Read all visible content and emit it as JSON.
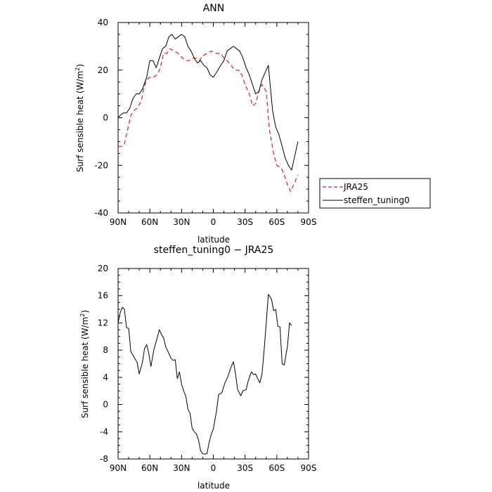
{
  "chart_data": [
    {
      "type": "line",
      "title": "ANN",
      "xlabel": "latitude",
      "ylabel": "Surf sensible heat (W/m²)",
      "ylabel_main": "Surf sensible heat (W/m",
      "ylabel_sup": "2",
      "ylabel_close": ")",
      "xlim": [
        90,
        -90
      ],
      "ylim": [
        -40,
        40
      ],
      "xticks": [
        90,
        60,
        30,
        0,
        -30,
        -60,
        -90
      ],
      "xtick_labels": [
        "90N",
        "60N",
        "30N",
        "0",
        "30S",
        "60S",
        "90S"
      ],
      "yticks": [
        -40,
        -20,
        0,
        20,
        40
      ],
      "ytick_labels": [
        "-40",
        "-20",
        "0",
        "20",
        "40"
      ],
      "legend_position": "right-outside",
      "series": [
        {
          "name": "JRA25",
          "color": "#e31a1c",
          "style": "dashed",
          "points": [
            [
              90,
              -12
            ],
            [
              86,
              -12
            ],
            [
              84,
              -11
            ],
            [
              81,
              -5
            ],
            [
              78,
              1
            ],
            [
              75,
              3
            ],
            [
              72,
              4
            ],
            [
              68,
              7
            ],
            [
              66,
              12
            ],
            [
              63,
              16
            ],
            [
              60,
              17
            ],
            [
              57,
              17
            ],
            [
              53,
              18
            ],
            [
              50,
              21
            ],
            [
              47,
              27
            ],
            [
              44,
              27
            ],
            [
              41,
              29
            ],
            [
              37,
              28
            ],
            [
              33,
              27
            ],
            [
              29,
              25
            ],
            [
              26,
              24
            ],
            [
              23,
              24
            ],
            [
              20,
              25
            ],
            [
              16,
              25
            ],
            [
              13,
              24
            ],
            [
              10,
              26
            ],
            [
              6,
              27
            ],
            [
              2,
              28
            ],
            [
              0,
              27.5
            ],
            [
              -3,
              27
            ],
            [
              -7,
              27
            ],
            [
              -10,
              25
            ],
            [
              -13,
              24
            ],
            [
              -17,
              22
            ],
            [
              -20,
              20
            ],
            [
              -24,
              20
            ],
            [
              -27,
              18
            ],
            [
              -30,
              14
            ],
            [
              -34,
              10
            ],
            [
              -37,
              5
            ],
            [
              -40,
              6
            ],
            [
              -43,
              11
            ],
            [
              -46,
              14
            ],
            [
              -50,
              11
            ],
            [
              -53,
              -5
            ],
            [
              -57,
              -15
            ],
            [
              -60,
              -20
            ],
            [
              -64,
              -21
            ],
            [
              -67,
              -24
            ],
            [
              -70,
              -28
            ],
            [
              -73,
              -31
            ],
            [
              -76,
              -28
            ],
            [
              -80,
              -24
            ]
          ]
        },
        {
          "name": "steffen_tuning0",
          "color": "#000000",
          "style": "solid",
          "points": [
            [
              90,
              0
            ],
            [
              88,
              1
            ],
            [
              85,
              2
            ],
            [
              82,
              2
            ],
            [
              79,
              4
            ],
            [
              76,
              8
            ],
            [
              73,
              10
            ],
            [
              70,
              10
            ],
            [
              67,
              12
            ],
            [
              63,
              17
            ],
            [
              60,
              24
            ],
            [
              57,
              24
            ],
            [
              54,
              21
            ],
            [
              51,
              25
            ],
            [
              48,
              29
            ],
            [
              45,
              30
            ],
            [
              42,
              34
            ],
            [
              39,
              35
            ],
            [
              36,
              33
            ],
            [
              33,
              34
            ],
            [
              30,
              35
            ],
            [
              27,
              34
            ],
            [
              24,
              30
            ],
            [
              21,
              28
            ],
            [
              18,
              25
            ],
            [
              15,
              23
            ],
            [
              12,
              24
            ],
            [
              9,
              22
            ],
            [
              6,
              21
            ],
            [
              3,
              18
            ],
            [
              0,
              17
            ],
            [
              -3,
              19
            ],
            [
              -7,
              22
            ],
            [
              -10,
              24
            ],
            [
              -13,
              28
            ],
            [
              -16,
              29
            ],
            [
              -19,
              30
            ],
            [
              -22,
              29
            ],
            [
              -25,
              28
            ],
            [
              -28,
              25
            ],
            [
              -31,
              21
            ],
            [
              -34,
              18
            ],
            [
              -37,
              14
            ],
            [
              -40,
              10
            ],
            [
              -43,
              11
            ],
            [
              -46,
              16
            ],
            [
              -49,
              19
            ],
            [
              -52,
              22
            ],
            [
              -56,
              3
            ],
            [
              -59,
              -4
            ],
            [
              -62,
              -7
            ],
            [
              -65,
              -12
            ],
            [
              -68,
              -17
            ],
            [
              -71,
              -20
            ],
            [
              -74,
              -22
            ],
            [
              -77,
              -16
            ],
            [
              -80,
              -10
            ]
          ]
        }
      ]
    },
    {
      "type": "line",
      "title": "steffen_tuning0 − JRA25",
      "xlabel": "latitude",
      "ylabel": "Surf sensible heat (W/m²)",
      "ylabel_main": "Surf sensible heat (W/m",
      "ylabel_sup": "2",
      "ylabel_close": ")",
      "xlim": [
        90,
        -90
      ],
      "ylim": [
        -8,
        20
      ],
      "xticks": [
        90,
        60,
        30,
        0,
        -30,
        -60,
        -90
      ],
      "xtick_labels": [
        "90N",
        "60N",
        "30N",
        "0",
        "30S",
        "60S",
        "90S"
      ],
      "yticks": [
        -8,
        -4,
        0,
        4,
        8,
        12,
        16,
        20
      ],
      "ytick_labels": [
        "-8",
        "-4",
        "0",
        "4",
        "8",
        "12",
        "16",
        "20"
      ],
      "series": [
        {
          "color": "#000000",
          "style": "solid",
          "points": [
            [
              90,
              12
            ],
            [
              88,
              13.5
            ],
            [
              86,
              14.3
            ],
            [
              84,
              14
            ],
            [
              82,
              11.3
            ],
            [
              80,
              11.2
            ],
            [
              78,
              7.8
            ],
            [
              75,
              7
            ],
            [
              72,
              6.2
            ],
            [
              70,
              4.5
            ],
            [
              67,
              6.2
            ],
            [
              65,
              8.2
            ],
            [
              63,
              8.8
            ],
            [
              61,
              7.5
            ],
            [
              59,
              5.6
            ],
            [
              56,
              8.2
            ],
            [
              53,
              9.8
            ],
            [
              51,
              11
            ],
            [
              49,
              10.3
            ],
            [
              47,
              9.8
            ],
            [
              45,
              8.5
            ],
            [
              42,
              7.5
            ],
            [
              40,
              6.8
            ],
            [
              38,
              6.5
            ],
            [
              36,
              6.6
            ],
            [
              34,
              3.8
            ],
            [
              32,
              4.8
            ],
            [
              30,
              3
            ],
            [
              28,
              2
            ],
            [
              26,
              1.2
            ],
            [
              24,
              -0.7
            ],
            [
              22,
              -1.3
            ],
            [
              20,
              -3.5
            ],
            [
              18,
              -4
            ],
            [
              16,
              -4.3
            ],
            [
              14,
              -5.2
            ],
            [
              12,
              -6.8
            ],
            [
              10,
              -7.2
            ],
            [
              8,
              -7.3
            ],
            [
              6,
              -7.2
            ],
            [
              4,
              -5.6
            ],
            [
              2,
              -4.4
            ],
            [
              0,
              -3.6
            ],
            [
              -3,
              -1
            ],
            [
              -5,
              1.5
            ],
            [
              -8,
              1.7
            ],
            [
              -11,
              3.2
            ],
            [
              -14,
              4.2
            ],
            [
              -17,
              5.6
            ],
            [
              -19,
              6.3
            ],
            [
              -21,
              4.5
            ],
            [
              -23,
              2.2
            ],
            [
              -26,
              1.3
            ],
            [
              -28,
              2
            ],
            [
              -31,
              2.2
            ],
            [
              -33,
              3.5
            ],
            [
              -36,
              4.8
            ],
            [
              -38,
              4.4
            ],
            [
              -40,
              4.5
            ],
            [
              -42,
              3.8
            ],
            [
              -44,
              3.2
            ],
            [
              -46,
              4.5
            ],
            [
              -48,
              8
            ],
            [
              -50,
              12
            ],
            [
              -52,
              16.2
            ],
            [
              -55,
              15.5
            ],
            [
              -57,
              13.8
            ],
            [
              -59,
              14
            ],
            [
              -61,
              11.5
            ],
            [
              -63,
              11.4
            ],
            [
              -65,
              6
            ],
            [
              -67,
              5.8
            ],
            [
              -70,
              8.5
            ],
            [
              -72,
              12
            ],
            [
              -74,
              11.6
            ]
          ]
        }
      ]
    }
  ]
}
